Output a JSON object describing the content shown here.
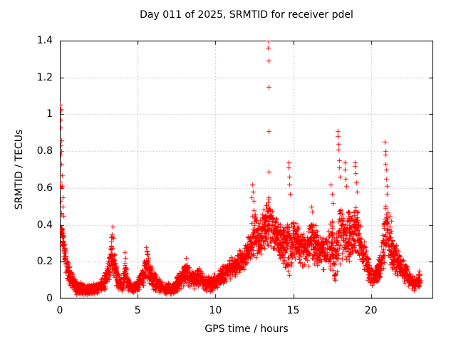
{
  "chart_data": {
    "type": "scatter",
    "title": "Day 011 of 2025, SRMTID for receiver pdel",
    "xlabel": "GPS time / hours",
    "ylabel": "SRMTID / TECUs",
    "xlim": [
      0,
      24
    ],
    "ylim": [
      0,
      1.4
    ],
    "xticks": [
      0,
      5,
      10,
      15,
      20
    ],
    "xtick_labels": [
      "0",
      "5",
      "10",
      "15",
      "20"
    ],
    "yticks": [
      0,
      0.2,
      0.4,
      0.6,
      0.8,
      1,
      1.2,
      1.4
    ],
    "ytick_labels": [
      "0",
      "0.2",
      "0.4",
      "0.6",
      "0.8",
      "1",
      "1.2",
      "1.4"
    ],
    "grid": true,
    "legend": "none",
    "marker": {
      "shape": "plus",
      "size": 7
    },
    "colors": {
      "marker": "#ff0000",
      "grid": "#b3b3b3",
      "axis": "#000000",
      "background": "#ffffff"
    },
    "series_name": "SRMTID",
    "t_start": 0,
    "t_end": 23.15,
    "points_per_hour": 118,
    "seed": 20250111,
    "envelope": [
      [
        0.0,
        0.3,
        1.05
      ],
      [
        0.1,
        0.25,
        0.42
      ],
      [
        0.25,
        0.17,
        0.33
      ],
      [
        0.45,
        0.1,
        0.24
      ],
      [
        0.7,
        0.05,
        0.15
      ],
      [
        1.0,
        0.02,
        0.1
      ],
      [
        1.6,
        0.02,
        0.08
      ],
      [
        2.3,
        0.02,
        0.09
      ],
      [
        2.8,
        0.04,
        0.12
      ],
      [
        3.05,
        0.06,
        0.2
      ],
      [
        3.3,
        0.1,
        0.35
      ],
      [
        3.45,
        0.08,
        0.3
      ],
      [
        3.7,
        0.04,
        0.14
      ],
      [
        4.0,
        0.03,
        0.11
      ],
      [
        4.2,
        0.05,
        0.2
      ],
      [
        4.45,
        0.03,
        0.1
      ],
      [
        4.8,
        0.02,
        0.09
      ],
      [
        5.1,
        0.04,
        0.13
      ],
      [
        5.35,
        0.05,
        0.18
      ],
      [
        5.6,
        0.07,
        0.26
      ],
      [
        5.85,
        0.05,
        0.17
      ],
      [
        6.1,
        0.04,
        0.14
      ],
      [
        6.45,
        0.03,
        0.1
      ],
      [
        6.8,
        0.02,
        0.08
      ],
      [
        7.3,
        0.02,
        0.09
      ],
      [
        7.6,
        0.04,
        0.14
      ],
      [
        8.0,
        0.06,
        0.18
      ],
      [
        8.2,
        0.07,
        0.2
      ],
      [
        8.6,
        0.05,
        0.14
      ],
      [
        8.9,
        0.07,
        0.17
      ],
      [
        9.4,
        0.03,
        0.12
      ],
      [
        9.8,
        0.04,
        0.13
      ],
      [
        10.2,
        0.06,
        0.16
      ],
      [
        10.7,
        0.09,
        0.2
      ],
      [
        11.2,
        0.11,
        0.24
      ],
      [
        11.7,
        0.14,
        0.28
      ],
      [
        12.1,
        0.16,
        0.34
      ],
      [
        12.45,
        0.2,
        0.5
      ],
      [
        12.7,
        0.2,
        0.42
      ],
      [
        13.0,
        0.24,
        0.46
      ],
      [
        13.4,
        0.26,
        0.6
      ],
      [
        13.7,
        0.22,
        0.47
      ],
      [
        14.1,
        0.2,
        0.42
      ],
      [
        14.45,
        0.15,
        0.38
      ],
      [
        14.7,
        0.08,
        0.45
      ],
      [
        15.0,
        0.2,
        0.44
      ],
      [
        15.4,
        0.17,
        0.38
      ],
      [
        15.8,
        0.15,
        0.35
      ],
      [
        16.2,
        0.18,
        0.44
      ],
      [
        16.6,
        0.16,
        0.37
      ],
      [
        17.1,
        0.13,
        0.34
      ],
      [
        17.45,
        0.15,
        0.45
      ],
      [
        17.7,
        0.04,
        0.3
      ],
      [
        17.95,
        0.15,
        0.55
      ],
      [
        18.2,
        0.2,
        0.5
      ],
      [
        18.5,
        0.18,
        0.48
      ],
      [
        18.8,
        0.2,
        0.46
      ],
      [
        19.05,
        0.22,
        0.52
      ],
      [
        19.35,
        0.15,
        0.42
      ],
      [
        19.7,
        0.1,
        0.28
      ],
      [
        20.05,
        0.05,
        0.16
      ],
      [
        20.35,
        0.06,
        0.18
      ],
      [
        20.65,
        0.1,
        0.28
      ],
      [
        20.95,
        0.2,
        0.55
      ],
      [
        21.2,
        0.15,
        0.42
      ],
      [
        21.5,
        0.13,
        0.32
      ],
      [
        21.9,
        0.1,
        0.24
      ],
      [
        22.4,
        0.06,
        0.16
      ],
      [
        22.8,
        0.04,
        0.12
      ],
      [
        23.15,
        0.05,
        0.14
      ]
    ],
    "outliers": [
      [
        0.02,
        1.05
      ],
      [
        0.03,
        1.03
      ],
      [
        0.04,
        1.02
      ],
      [
        0.05,
        0.97
      ],
      [
        0.06,
        0.93
      ],
      [
        0.07,
        0.86
      ],
      [
        0.09,
        0.8
      ],
      [
        0.11,
        0.73
      ],
      [
        0.13,
        0.67
      ],
      [
        0.15,
        0.61
      ],
      [
        0.17,
        0.55
      ],
      [
        0.19,
        0.5
      ],
      [
        0.21,
        0.45
      ],
      [
        3.32,
        0.31
      ],
      [
        3.36,
        0.35
      ],
      [
        3.4,
        0.39
      ],
      [
        3.43,
        0.33
      ],
      [
        4.15,
        0.25
      ],
      [
        4.22,
        0.22
      ],
      [
        5.52,
        0.28
      ],
      [
        5.58,
        0.26
      ],
      [
        8.12,
        0.22
      ],
      [
        12.32,
        0.55
      ],
      [
        12.38,
        0.62
      ],
      [
        12.42,
        0.58
      ],
      [
        12.48,
        0.53
      ],
      [
        13.37,
        1.4
      ],
      [
        13.38,
        1.36
      ],
      [
        13.4,
        1.29
      ],
      [
        13.41,
        1.15
      ],
      [
        13.42,
        0.91
      ],
      [
        13.43,
        0.69
      ],
      [
        14.68,
        0.74
      ],
      [
        14.71,
        0.71
      ],
      [
        14.74,
        0.66
      ],
      [
        14.77,
        0.62
      ],
      [
        14.8,
        0.57
      ],
      [
        16.18,
        0.5
      ],
      [
        16.22,
        0.47
      ],
      [
        17.42,
        0.62
      ],
      [
        17.48,
        0.57
      ],
      [
        17.52,
        0.52
      ],
      [
        17.86,
        0.91
      ],
      [
        17.88,
        0.88
      ],
      [
        17.9,
        0.84
      ],
      [
        17.91,
        0.81
      ],
      [
        17.94,
        0.75
      ],
      [
        17.97,
        0.71
      ],
      [
        18.0,
        0.66
      ],
      [
        18.3,
        0.74
      ],
      [
        18.34,
        0.7
      ],
      [
        18.38,
        0.65
      ],
      [
        18.42,
        0.61
      ],
      [
        18.94,
        0.74
      ],
      [
        18.98,
        0.72
      ],
      [
        19.02,
        0.68
      ],
      [
        19.06,
        0.63
      ],
      [
        19.1,
        0.58
      ],
      [
        20.9,
        0.85
      ],
      [
        20.92,
        0.8
      ],
      [
        20.93,
        0.78
      ],
      [
        20.95,
        0.73
      ],
      [
        20.96,
        0.7
      ],
      [
        20.98,
        0.65
      ],
      [
        21.0,
        0.61
      ],
      [
        21.02,
        0.57
      ],
      [
        21.22,
        0.45
      ],
      [
        21.28,
        0.42
      ],
      [
        23.08,
        0.15
      ],
      [
        23.12,
        0.13
      ]
    ]
  }
}
